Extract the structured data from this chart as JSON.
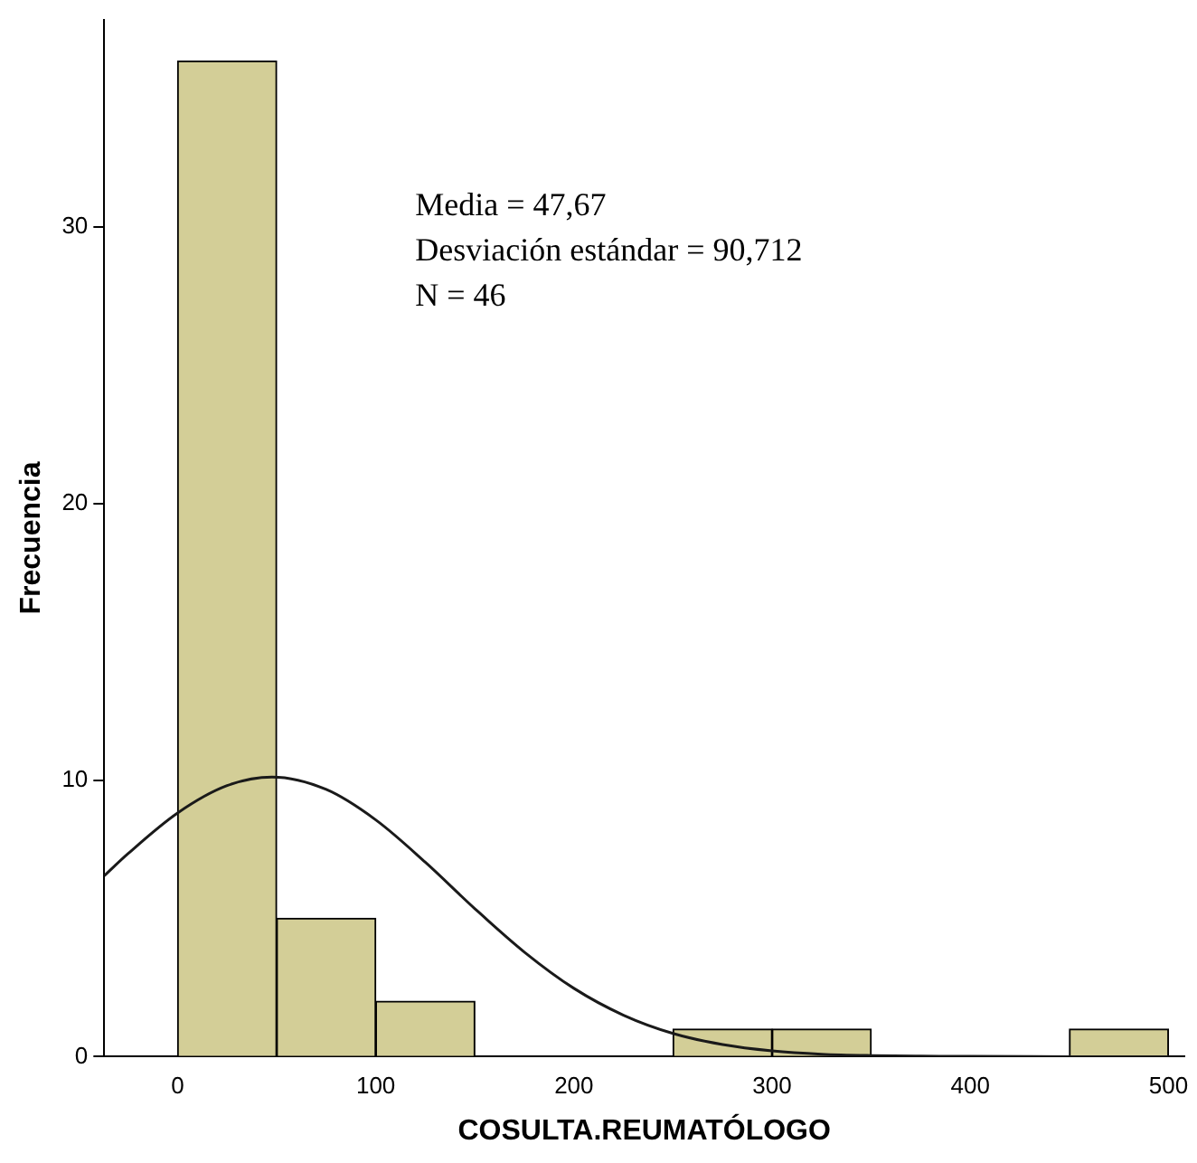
{
  "chart_data": {
    "type": "histogram",
    "xlabel": "COSULTA.REUMATÓLOGO",
    "ylabel": "Frecuencia",
    "bins": [
      0,
      50,
      100,
      150,
      200,
      250,
      300,
      350,
      400,
      450,
      500
    ],
    "values": [
      36,
      5,
      2,
      0,
      0,
      1,
      1,
      0,
      0,
      1
    ],
    "color": "#d3ce97",
    "series": [
      {
        "type": "line",
        "color": "#1a1a1a",
        "x": [
          -37,
          -25,
          0,
          25,
          47.67,
          75,
          100,
          125,
          150,
          175,
          200,
          225,
          250,
          275,
          300,
          325,
          350,
          375,
          400,
          450,
          500
        ],
        "values": [
          6.54,
          7.34,
          8.81,
          9.8,
          10.11,
          9.66,
          8.56,
          7.03,
          5.35,
          3.78,
          2.47,
          1.5,
          0.84,
          0.44,
          0.21,
          0.09,
          0.04,
          0.02,
          0.01,
          0,
          0
        ]
      }
    ],
    "xlim": [
      -37,
      508
    ],
    "xticks": [
      0,
      100,
      200,
      300,
      400,
      500
    ],
    "ylim": [
      0,
      37.5
    ],
    "yticks": [
      0,
      10,
      20,
      30
    ],
    "annotations": [
      "Media = 47,67",
      "Desviación estándar = 90,712",
      "N = 46"
    ],
    "grid": false,
    "legend": false,
    "marker": "none"
  }
}
